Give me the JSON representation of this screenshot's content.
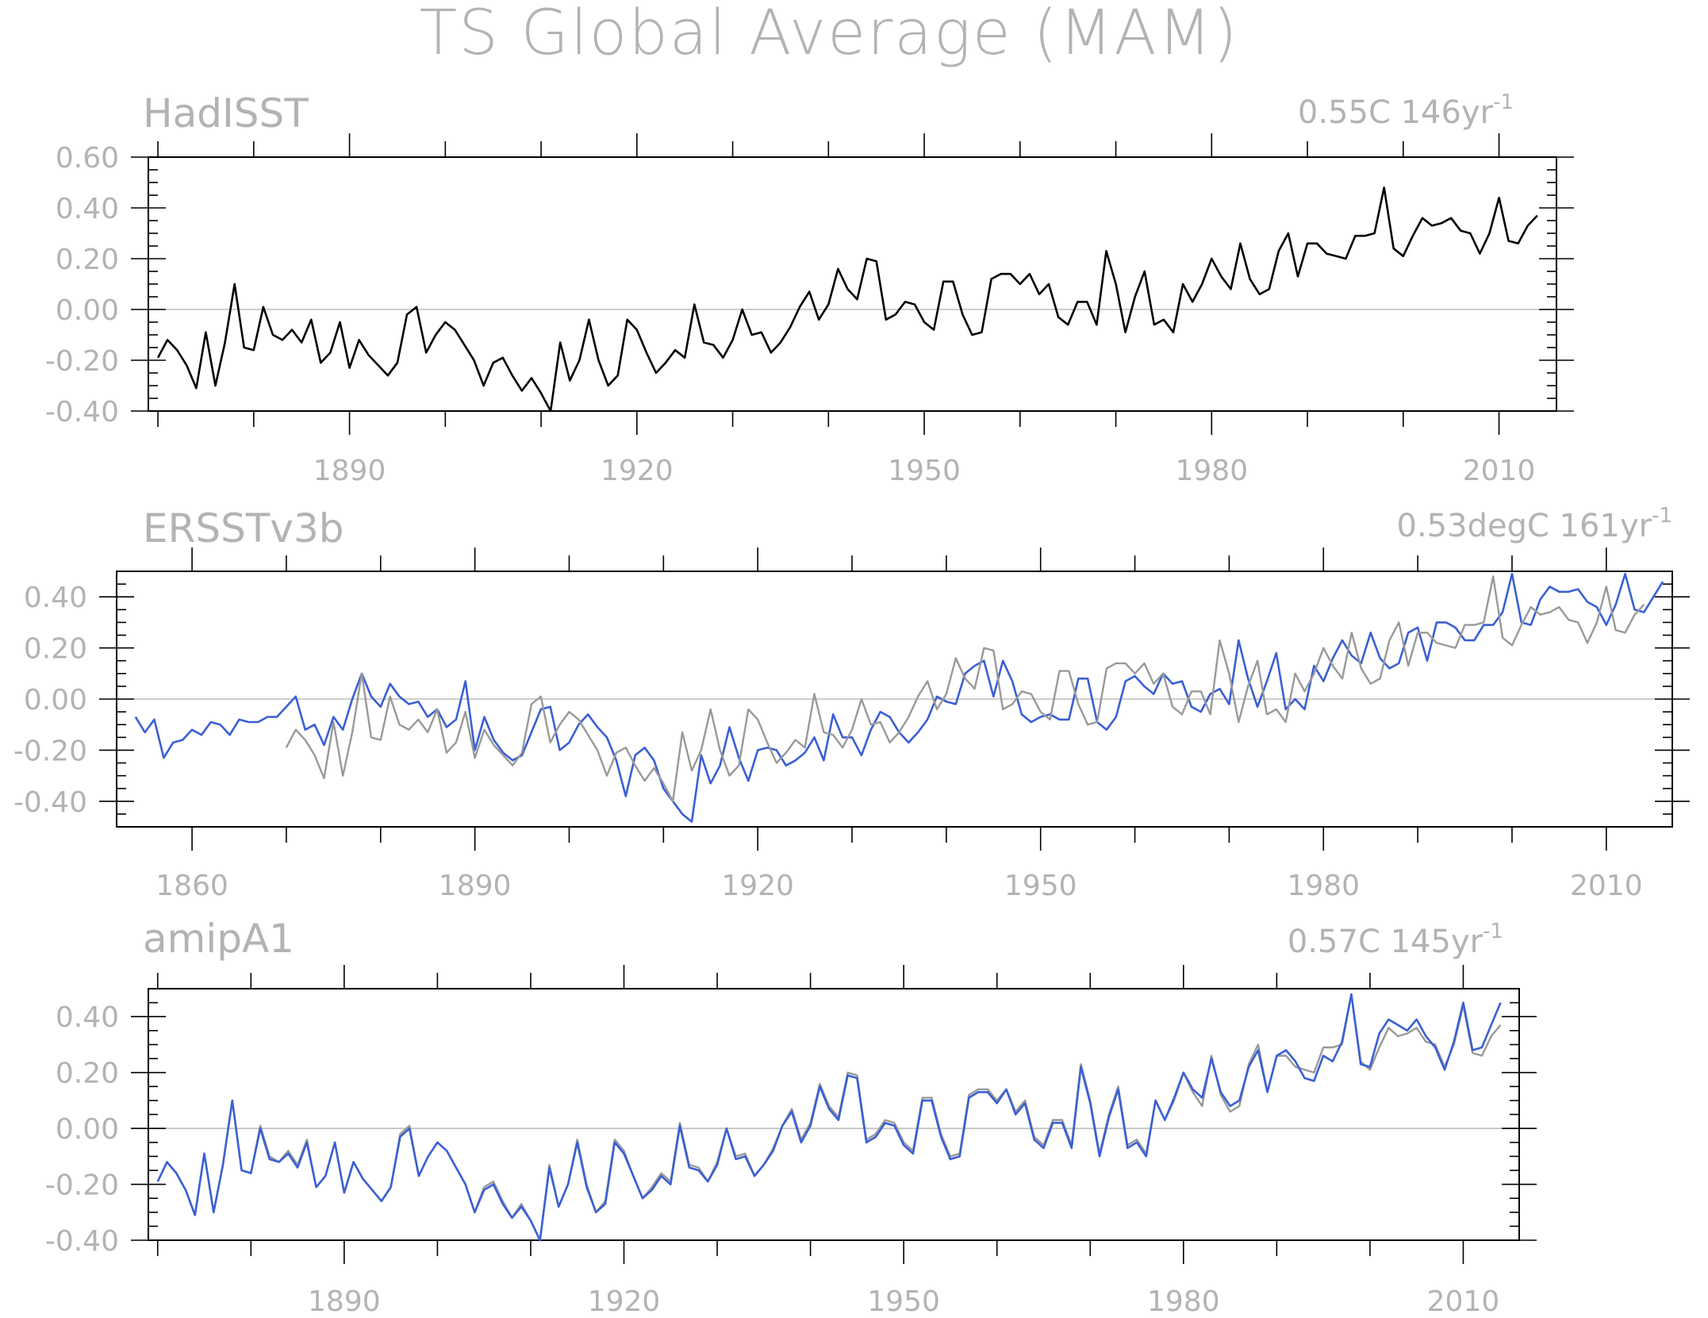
{
  "title": "TS Global Average (MAM)",
  "colors": {
    "obs": "#000000",
    "reference": "#999999",
    "model": "#3a5fd4",
    "text": "#b3b3b3"
  },
  "panels": [
    {
      "id": "hadisst",
      "title": "HadISST",
      "trend": "0.55C 146yr",
      "trend_sup": "-1"
    },
    {
      "id": "ersst",
      "title": "ERSSTv3b",
      "trend": "0.53degC 161yr",
      "trend_sup": "-1"
    },
    {
      "id": "amip",
      "title": "amipA1",
      "trend": "0.57C 145yr",
      "trend_sup": "-1"
    }
  ],
  "chart_data": [
    {
      "type": "line",
      "title": "HadISST",
      "annotation": "0.55C 146yr-1",
      "xlim": [
        1869,
        2016
      ],
      "ylim": [
        -0.4,
        0.6
      ],
      "xticks": [
        "1890",
        "1920",
        "1950",
        "1980",
        "2010"
      ],
      "yticks": [
        "0.60",
        "0.40",
        "0.20",
        "0.00",
        "-0.20",
        "-0.40"
      ],
      "x_start": 1870,
      "series": [
        {
          "role": "obs",
          "values": [
            -0.19,
            -0.12,
            -0.16,
            -0.22,
            -0.31,
            -0.09,
            -0.3,
            -0.13,
            0.1,
            -0.15,
            -0.16,
            0.01,
            -0.1,
            -0.12,
            -0.08,
            -0.13,
            -0.04,
            -0.21,
            -0.17,
            -0.05,
            -0.23,
            -0.12,
            -0.18,
            -0.22,
            -0.26,
            -0.21,
            -0.02,
            0.01,
            -0.17,
            -0.1,
            -0.05,
            -0.08,
            -0.14,
            -0.2,
            -0.3,
            -0.21,
            -0.19,
            -0.26,
            -0.32,
            -0.27,
            -0.33,
            -0.4,
            -0.13,
            -0.28,
            -0.2,
            -0.04,
            -0.2,
            -0.3,
            -0.26,
            -0.04,
            -0.08,
            -0.17,
            -0.25,
            -0.21,
            -0.16,
            -0.19,
            0.02,
            -0.13,
            -0.14,
            -0.19,
            -0.12,
            0.0,
            -0.1,
            -0.09,
            -0.17,
            -0.13,
            -0.07,
            0.01,
            0.07,
            -0.04,
            0.02,
            0.16,
            0.08,
            0.04,
            0.2,
            0.19,
            -0.04,
            -0.02,
            0.03,
            0.02,
            -0.05,
            -0.08,
            0.11,
            0.11,
            -0.02,
            -0.1,
            -0.09,
            0.12,
            0.14,
            0.14,
            0.1,
            0.14,
            0.06,
            0.1,
            -0.03,
            -0.06,
            0.03,
            0.03,
            -0.06,
            0.23,
            0.1,
            -0.09,
            0.05,
            0.15,
            -0.06,
            -0.04,
            -0.09,
            0.1,
            0.03,
            0.1,
            0.2,
            0.13,
            0.08,
            0.26,
            0.12,
            0.06,
            0.08,
            0.23,
            0.3,
            0.13,
            0.26,
            0.26,
            0.22,
            0.21,
            0.2,
            0.29,
            0.29,
            0.3,
            0.48,
            0.24,
            0.21,
            0.29,
            0.36,
            0.33,
            0.34,
            0.36,
            0.31,
            0.3,
            0.22,
            0.3,
            0.44,
            0.27,
            0.26,
            0.33,
            0.37
          ]
        }
      ]
    },
    {
      "type": "line",
      "title": "ERSSTv3b",
      "annotation": "0.53degC 161yr-1",
      "xlim": [
        1852,
        2017
      ],
      "ylim": [
        -0.5,
        0.5
      ],
      "xticks": [
        "1860",
        "1890",
        "1920",
        "1950",
        "1980",
        "2010"
      ],
      "yticks": [
        "0.40",
        "0.20",
        "0.00",
        "-0.20",
        "-0.40"
      ],
      "series": [
        {
          "role": "model",
          "x_start": 1854,
          "values": [
            -0.07,
            -0.13,
            -0.08,
            -0.23,
            -0.17,
            -0.16,
            -0.12,
            -0.14,
            -0.09,
            -0.1,
            -0.14,
            -0.08,
            -0.09,
            -0.09,
            -0.07,
            -0.07,
            -0.03,
            0.01,
            -0.12,
            -0.1,
            -0.18,
            -0.07,
            -0.12,
            0.0,
            0.1,
            0.01,
            -0.03,
            0.06,
            0.01,
            -0.02,
            -0.01,
            -0.07,
            -0.04,
            -0.11,
            -0.08,
            0.07,
            -0.2,
            -0.07,
            -0.16,
            -0.21,
            -0.24,
            -0.22,
            -0.13,
            -0.04,
            -0.03,
            -0.2,
            -0.17,
            -0.1,
            -0.06,
            -0.11,
            -0.15,
            -0.24,
            -0.38,
            -0.22,
            -0.19,
            -0.24,
            -0.35,
            -0.4,
            -0.45,
            -0.48,
            -0.22,
            -0.33,
            -0.26,
            -0.11,
            -0.23,
            -0.32,
            -0.2,
            -0.19,
            -0.2,
            -0.26,
            -0.24,
            -0.21,
            -0.15,
            -0.24,
            -0.06,
            -0.15,
            -0.15,
            -0.22,
            -0.12,
            -0.05,
            -0.07,
            -0.13,
            -0.17,
            -0.13,
            -0.08,
            0.01,
            -0.01,
            -0.02,
            0.1,
            0.13,
            0.15,
            0.01,
            0.15,
            0.07,
            -0.06,
            -0.09,
            -0.07,
            -0.06,
            -0.08,
            -0.08,
            0.08,
            0.08,
            -0.09,
            -0.12,
            -0.07,
            0.07,
            0.09,
            0.05,
            0.02,
            0.1,
            0.06,
            0.07,
            -0.03,
            -0.05,
            0.02,
            0.04,
            -0.02,
            0.23,
            0.08,
            -0.03,
            0.07,
            0.18,
            -0.04,
            0.0,
            -0.04,
            0.13,
            0.07,
            0.16,
            0.23,
            0.17,
            0.14,
            0.26,
            0.16,
            0.12,
            0.14,
            0.26,
            0.28,
            0.15,
            0.3,
            0.3,
            0.28,
            0.23,
            0.23,
            0.29,
            0.29,
            0.34,
            0.49,
            0.3,
            0.29,
            0.39,
            0.44,
            0.42,
            0.42,
            0.43,
            0.38,
            0.36,
            0.29,
            0.37,
            0.49,
            0.35,
            0.34,
            0.4,
            0.46
          ]
        },
        {
          "role": "reference",
          "x_start": 1870,
          "values": [
            -0.19,
            -0.12,
            -0.16,
            -0.22,
            -0.31,
            -0.09,
            -0.3,
            -0.13,
            0.1,
            -0.15,
            -0.16,
            0.01,
            -0.1,
            -0.12,
            -0.08,
            -0.13,
            -0.04,
            -0.21,
            -0.17,
            -0.05,
            -0.23,
            -0.12,
            -0.18,
            -0.22,
            -0.26,
            -0.21,
            -0.02,
            0.01,
            -0.17,
            -0.1,
            -0.05,
            -0.08,
            -0.14,
            -0.2,
            -0.3,
            -0.21,
            -0.19,
            -0.26,
            -0.32,
            -0.27,
            -0.33,
            -0.4,
            -0.13,
            -0.28,
            -0.2,
            -0.04,
            -0.2,
            -0.3,
            -0.26,
            -0.04,
            -0.08,
            -0.17,
            -0.25,
            -0.21,
            -0.16,
            -0.19,
            0.02,
            -0.13,
            -0.14,
            -0.19,
            -0.12,
            0.0,
            -0.1,
            -0.09,
            -0.17,
            -0.13,
            -0.07,
            0.01,
            0.07,
            -0.04,
            0.02,
            0.16,
            0.08,
            0.04,
            0.2,
            0.19,
            -0.04,
            -0.02,
            0.03,
            0.02,
            -0.05,
            -0.08,
            0.11,
            0.11,
            -0.02,
            -0.1,
            -0.09,
            0.12,
            0.14,
            0.14,
            0.1,
            0.14,
            0.06,
            0.1,
            -0.03,
            -0.06,
            0.03,
            0.03,
            -0.06,
            0.23,
            0.1,
            -0.09,
            0.05,
            0.15,
            -0.06,
            -0.04,
            -0.09,
            0.1,
            0.03,
            0.1,
            0.2,
            0.13,
            0.08,
            0.26,
            0.12,
            0.06,
            0.08,
            0.23,
            0.3,
            0.13,
            0.26,
            0.26,
            0.22,
            0.21,
            0.2,
            0.29,
            0.29,
            0.3,
            0.48,
            0.24,
            0.21,
            0.29,
            0.36,
            0.33,
            0.34,
            0.36,
            0.31,
            0.3,
            0.22,
            0.3,
            0.44,
            0.27,
            0.26,
            0.33,
            0.37
          ]
        }
      ]
    },
    {
      "type": "line",
      "title": "amipA1",
      "annotation": "0.57C 145yr-1",
      "xlim": [
        1869,
        2016
      ],
      "ylim": [
        -0.4,
        0.5
      ],
      "xticks": [
        "1890",
        "1920",
        "1950",
        "1980",
        "2010"
      ],
      "yticks": [
        "0.40",
        "0.20",
        "0.00",
        "-0.20",
        "-0.40"
      ],
      "x_start": 1870,
      "series": [
        {
          "role": "reference",
          "values": [
            -0.19,
            -0.12,
            -0.16,
            -0.22,
            -0.31,
            -0.09,
            -0.3,
            -0.13,
            0.1,
            -0.15,
            -0.16,
            0.01,
            -0.1,
            -0.12,
            -0.08,
            -0.13,
            -0.04,
            -0.21,
            -0.17,
            -0.05,
            -0.23,
            -0.12,
            -0.18,
            -0.22,
            -0.26,
            -0.21,
            -0.02,
            0.01,
            -0.17,
            -0.1,
            -0.05,
            -0.08,
            -0.14,
            -0.2,
            -0.3,
            -0.21,
            -0.19,
            -0.26,
            -0.32,
            -0.27,
            -0.33,
            -0.4,
            -0.13,
            -0.28,
            -0.2,
            -0.04,
            -0.2,
            -0.3,
            -0.26,
            -0.04,
            -0.08,
            -0.17,
            -0.25,
            -0.21,
            -0.16,
            -0.19,
            0.02,
            -0.13,
            -0.14,
            -0.19,
            -0.12,
            0.0,
            -0.1,
            -0.09,
            -0.17,
            -0.13,
            -0.07,
            0.01,
            0.07,
            -0.04,
            0.02,
            0.16,
            0.08,
            0.04,
            0.2,
            0.19,
            -0.04,
            -0.02,
            0.03,
            0.02,
            -0.05,
            -0.08,
            0.11,
            0.11,
            -0.02,
            -0.1,
            -0.09,
            0.12,
            0.14,
            0.14,
            0.1,
            0.14,
            0.06,
            0.1,
            -0.03,
            -0.06,
            0.03,
            0.03,
            -0.06,
            0.23,
            0.1,
            -0.09,
            0.05,
            0.15,
            -0.06,
            -0.04,
            -0.09,
            0.1,
            0.03,
            0.1,
            0.2,
            0.13,
            0.08,
            0.26,
            0.12,
            0.06,
            0.08,
            0.23,
            0.3,
            0.13,
            0.26,
            0.26,
            0.22,
            0.21,
            0.2,
            0.29,
            0.29,
            0.3,
            0.48,
            0.24,
            0.21,
            0.29,
            0.36,
            0.33,
            0.34,
            0.36,
            0.31,
            0.3,
            0.22,
            0.3,
            0.44,
            0.27,
            0.26,
            0.33,
            0.37
          ]
        },
        {
          "role": "model",
          "values": [
            -0.19,
            -0.12,
            -0.16,
            -0.22,
            -0.31,
            -0.09,
            -0.3,
            -0.13,
            0.1,
            -0.15,
            -0.16,
            0.0,
            -0.11,
            -0.12,
            -0.09,
            -0.14,
            -0.05,
            -0.21,
            -0.17,
            -0.05,
            -0.23,
            -0.12,
            -0.18,
            -0.22,
            -0.26,
            -0.21,
            -0.03,
            0.0,
            -0.17,
            -0.1,
            -0.05,
            -0.08,
            -0.14,
            -0.2,
            -0.3,
            -0.22,
            -0.2,
            -0.27,
            -0.32,
            -0.28,
            -0.33,
            -0.4,
            -0.14,
            -0.28,
            -0.2,
            -0.05,
            -0.21,
            -0.3,
            -0.27,
            -0.05,
            -0.09,
            -0.17,
            -0.25,
            -0.22,
            -0.17,
            -0.2,
            0.01,
            -0.14,
            -0.15,
            -0.19,
            -0.13,
            0.0,
            -0.11,
            -0.1,
            -0.17,
            -0.13,
            -0.08,
            0.01,
            0.06,
            -0.05,
            0.01,
            0.15,
            0.07,
            0.03,
            0.19,
            0.18,
            -0.05,
            -0.03,
            0.02,
            0.01,
            -0.06,
            -0.09,
            0.1,
            0.1,
            -0.03,
            -0.11,
            -0.1,
            0.11,
            0.13,
            0.13,
            0.09,
            0.14,
            0.05,
            0.09,
            -0.04,
            -0.07,
            0.02,
            0.02,
            -0.07,
            0.22,
            0.09,
            -0.1,
            0.04,
            0.14,
            -0.07,
            -0.05,
            -0.1,
            0.1,
            0.03,
            0.11,
            0.2,
            0.14,
            0.11,
            0.25,
            0.13,
            0.08,
            0.1,
            0.22,
            0.28,
            0.13,
            0.26,
            0.28,
            0.24,
            0.18,
            0.17,
            0.26,
            0.24,
            0.31,
            0.48,
            0.23,
            0.22,
            0.34,
            0.39,
            0.37,
            0.35,
            0.39,
            0.33,
            0.29,
            0.21,
            0.31,
            0.45,
            0.28,
            0.29,
            0.37,
            0.45
          ]
        }
      ]
    }
  ]
}
